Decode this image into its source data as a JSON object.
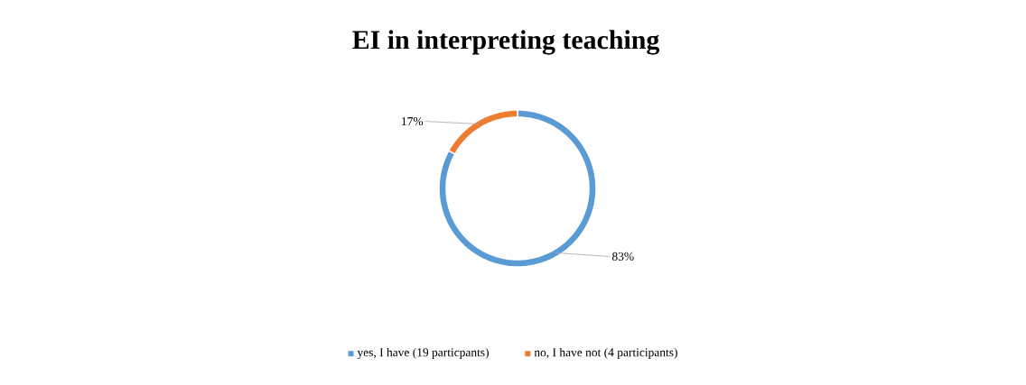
{
  "chart_data": {
    "type": "donut",
    "title": "EI in interpreting teaching",
    "categories": [
      "yes, I have (19 particpants)",
      "no, I have not (4 participants)"
    ],
    "values": [
      83,
      17
    ],
    "colors": [
      "#5b9bd5",
      "#ed7d31"
    ],
    "value_labels": [
      "83%",
      "17%"
    ],
    "legend": "bottom"
  }
}
